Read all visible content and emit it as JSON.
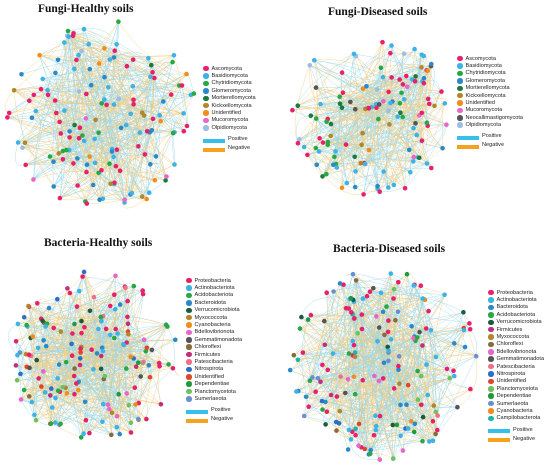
{
  "colors": {
    "positive": "#33c1ec",
    "negative": "#f5a31f",
    "edge_positive": "#8fd7f1",
    "edge_negative": "#f6c97a"
  },
  "panels": [
    {
      "id": "fungi-healthy",
      "title": "Fungi-Healthy soils",
      "legend": [
        {
          "label": "Ascomycota",
          "color": "#e8206a"
        },
        {
          "label": "Basidiomycota",
          "color": "#3bb3e6"
        },
        {
          "label": "Chytridiomycota",
          "color": "#27a844"
        },
        {
          "label": "Glomeromycota",
          "color": "#2a8ac8"
        },
        {
          "label": "Mortierellomycota",
          "color": "#1d7a3e"
        },
        {
          "label": "Kickxellomycota",
          "color": "#b2862a"
        },
        {
          "label": "Unidentified",
          "color": "#f28c1c"
        },
        {
          "label": "Mucoromycota",
          "color": "#e865c9"
        },
        {
          "label": "Olpidiomycota",
          "color": "#9bbde6"
        }
      ],
      "edges": {
        "positive": "Positive",
        "negative": "Negative"
      }
    },
    {
      "id": "fungi-diseased",
      "title": "Fungi-Diseased soils",
      "legend": [
        {
          "label": "Ascomycota",
          "color": "#e8206a"
        },
        {
          "label": "Basidiomycota",
          "color": "#3bb3e6"
        },
        {
          "label": "Chytridiomycota",
          "color": "#27a844"
        },
        {
          "label": "Glomeromycota",
          "color": "#2a8ac8"
        },
        {
          "label": "Mortierellomycota",
          "color": "#1d7a3e"
        },
        {
          "label": "Kickxellomycota",
          "color": "#b2862a"
        },
        {
          "label": "Unidentified",
          "color": "#f28c1c"
        },
        {
          "label": "Mucoromycota",
          "color": "#e865c9"
        },
        {
          "label": "Neocallimastigomycota",
          "color": "#555555"
        },
        {
          "label": "Olpidiomycota",
          "color": "#9bbde6"
        }
      ],
      "edges": {
        "positive": "Positive",
        "negative": "Negative"
      }
    },
    {
      "id": "bacteria-healthy",
      "title": "Bacteria-Healthy soils",
      "legend": [
        {
          "label": "Proteobacteria",
          "color": "#e8206a"
        },
        {
          "label": "Actinobacteriota",
          "color": "#3bb3e6"
        },
        {
          "label": "Acidobacteriota",
          "color": "#27a844"
        },
        {
          "label": "Bacteroidota",
          "color": "#2a8ac8"
        },
        {
          "label": "Verrucomicrobiota",
          "color": "#1d5a3e"
        },
        {
          "label": "Myxococcota",
          "color": "#b2862a"
        },
        {
          "label": "Cyanobacteria",
          "color": "#f28c1c"
        },
        {
          "label": "Bdellovibrionota",
          "color": "#e865c9"
        },
        {
          "label": "Gemmatimonadota",
          "color": "#555555"
        },
        {
          "label": "Chloroflexi",
          "color": "#8a6a3a"
        },
        {
          "label": "Firmicutes",
          "color": "#c0307a"
        },
        {
          "label": "Patescibacteria",
          "color": "#f36e8a"
        },
        {
          "label": "Nitrospirota",
          "color": "#2a6fc8"
        },
        {
          "label": "Unidentified",
          "color": "#e3452b"
        },
        {
          "label": "Dependentiae",
          "color": "#1f9a3a"
        },
        {
          "label": "Planctomycetota",
          "color": "#6fc15a"
        },
        {
          "label": "Sumerlaeota",
          "color": "#6a8fd0"
        }
      ],
      "edges": {
        "positive": "Positive",
        "negative": "Negative"
      }
    },
    {
      "id": "bacteria-diseased",
      "title": "Bacteria-Diseased soils",
      "legend": [
        {
          "label": "Proteobacteria",
          "color": "#e8206a"
        },
        {
          "label": "Actinobacteriota",
          "color": "#3bb3e6"
        },
        {
          "label": "Bacteroidota",
          "color": "#2a8ac8"
        },
        {
          "label": "Acidobacteriota",
          "color": "#27a844"
        },
        {
          "label": "Verrucomicrobiota",
          "color": "#1d5a3e"
        },
        {
          "label": "Firmicutes",
          "color": "#c0307a"
        },
        {
          "label": "Myxococcota",
          "color": "#b2862a"
        },
        {
          "label": "Chloroflexi",
          "color": "#8a6a3a"
        },
        {
          "label": "Bdellovibrionota",
          "color": "#e865c9"
        },
        {
          "label": "Gemmatimonadota",
          "color": "#555555"
        },
        {
          "label": "Patescibacteria",
          "color": "#f36e8a"
        },
        {
          "label": "Nitrospirota",
          "color": "#2a6fc8"
        },
        {
          "label": "Unidentified",
          "color": "#e3452b"
        },
        {
          "label": "Planctomycetota",
          "color": "#6fc15a"
        },
        {
          "label": "Dependentiae",
          "color": "#1f9a3a"
        },
        {
          "label": "Sumerlaeota",
          "color": "#6a8fd0"
        },
        {
          "label": "Cyanobacteria",
          "color": "#f28c1c"
        },
        {
          "label": "Campilobacterota",
          "color": "#19b5b0"
        }
      ],
      "edges": {
        "positive": "Positive",
        "negative": "Negative"
      }
    }
  ]
}
